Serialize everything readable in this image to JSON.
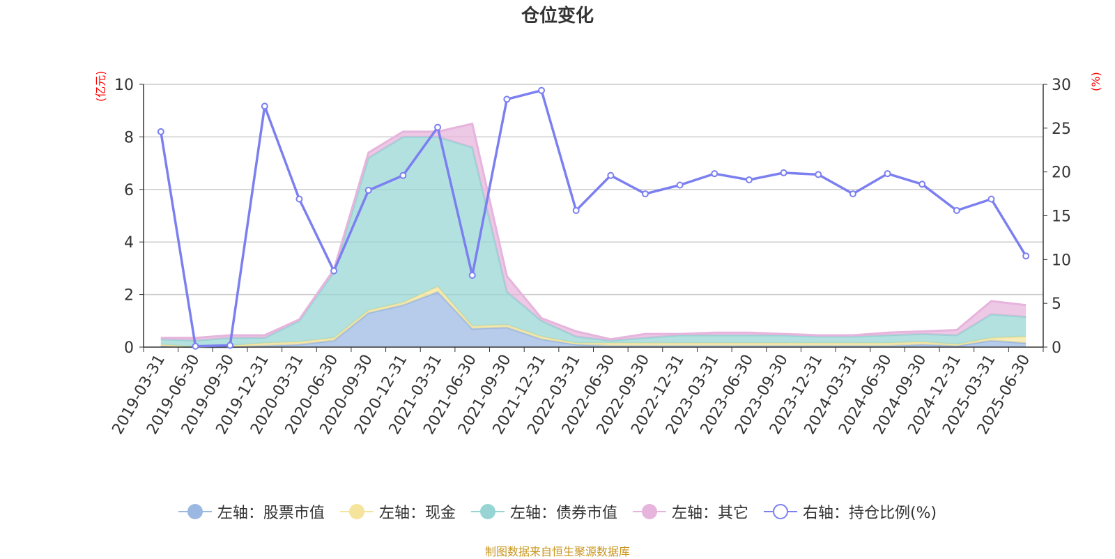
{
  "title": "仓位变化",
  "source": "制图数据来自恒生聚源数据库",
  "colors": {
    "stock": "#9bb8e3",
    "cash": "#f5e49b",
    "bond": "#96d5d4",
    "other": "#e6b4dc",
    "ratio": "#7b7ff0",
    "axis_unit": "#ff0000"
  },
  "legend": [
    {
      "key": "stock",
      "label": "左轴：股票市值",
      "icon": "filled-circle-icon"
    },
    {
      "key": "cash",
      "label": "左轴：现金",
      "icon": "filled-circle-icon"
    },
    {
      "key": "bond",
      "label": "左轴：债券市值",
      "icon": "filled-circle-icon"
    },
    {
      "key": "other",
      "label": "左轴：其它",
      "icon": "filled-circle-icon"
    },
    {
      "key": "ratio",
      "label": "右轴：持仓比例(%)",
      "icon": "hollow-circle-icon"
    }
  ],
  "chart_data": {
    "type": "area",
    "title": "仓位变化",
    "y_left": {
      "unit": "(亿元)",
      "range": [
        0,
        10
      ],
      "ticks": [
        0,
        2,
        4,
        6,
        8,
        10
      ]
    },
    "y_right": {
      "unit": "(%)",
      "range": [
        0,
        30
      ],
      "ticks": [
        0,
        5,
        10,
        15,
        20,
        25,
        30
      ]
    },
    "grid": true,
    "legend_position": "bottom",
    "categories": [
      "2019-03-31",
      "2019-06-30",
      "2019-09-30",
      "2019-12-31",
      "2020-03-31",
      "2020-06-30",
      "2020-09-30",
      "2020-12-31",
      "2021-03-31",
      "2021-06-30",
      "2021-09-30",
      "2021-12-31",
      "2022-03-31",
      "2022-06-30",
      "2022-09-30",
      "2022-12-31",
      "2023-03-31",
      "2023-06-30",
      "2023-09-30",
      "2023-12-31",
      "2024-03-31",
      "2024-06-30",
      "2024-09-30",
      "2024-12-31",
      "2025-03-31",
      "2025-06-30"
    ],
    "series": [
      {
        "name": "左轴：股票市值",
        "key": "stock",
        "axis": "left",
        "stacked": true,
        "values": [
          0.05,
          0.0,
          0.0,
          0.05,
          0.1,
          0.25,
          1.3,
          1.6,
          2.1,
          0.7,
          0.75,
          0.3,
          0.1,
          0.05,
          0.05,
          0.05,
          0.05,
          0.05,
          0.05,
          0.05,
          0.05,
          0.05,
          0.1,
          0.05,
          0.25,
          0.15
        ]
      },
      {
        "name": "左轴：现金",
        "key": "cash",
        "axis": "left",
        "stacked": true,
        "values": [
          0.05,
          0.0,
          0.05,
          0.1,
          0.1,
          0.1,
          0.1,
          0.1,
          0.2,
          0.1,
          0.1,
          0.1,
          0.05,
          0.1,
          0.1,
          0.1,
          0.1,
          0.1,
          0.1,
          0.1,
          0.1,
          0.1,
          0.1,
          0.05,
          0.1,
          0.25
        ]
      },
      {
        "name": "左轴：债券市值",
        "key": "bond",
        "axis": "left",
        "stacked": true,
        "values": [
          0.2,
          0.25,
          0.3,
          0.2,
          0.8,
          2.5,
          5.8,
          6.3,
          5.7,
          6.8,
          1.25,
          0.6,
          0.25,
          0.1,
          0.2,
          0.3,
          0.3,
          0.3,
          0.3,
          0.25,
          0.25,
          0.3,
          0.3,
          0.35,
          0.9,
          0.75
        ]
      },
      {
        "name": "左轴：其它",
        "key": "other",
        "axis": "left",
        "stacked": true,
        "values": [
          0.05,
          0.1,
          0.1,
          0.1,
          0.05,
          0.1,
          0.2,
          0.2,
          0.2,
          0.9,
          0.6,
          0.1,
          0.2,
          0.05,
          0.15,
          0.05,
          0.1,
          0.1,
          0.05,
          0.05,
          0.05,
          0.1,
          0.1,
          0.2,
          0.5,
          0.45
        ]
      },
      {
        "name": "右轴：持仓比例(%)",
        "key": "ratio",
        "axis": "right",
        "type": "line",
        "values": [
          24.6,
          0.1,
          0.2,
          27.5,
          16.9,
          8.7,
          17.9,
          19.6,
          25.1,
          8.2,
          28.3,
          29.3,
          15.6,
          19.6,
          17.5,
          18.5,
          19.8,
          19.1,
          19.9,
          19.7,
          17.5,
          19.8,
          18.6,
          15.6,
          16.9,
          10.4
        ]
      }
    ]
  }
}
